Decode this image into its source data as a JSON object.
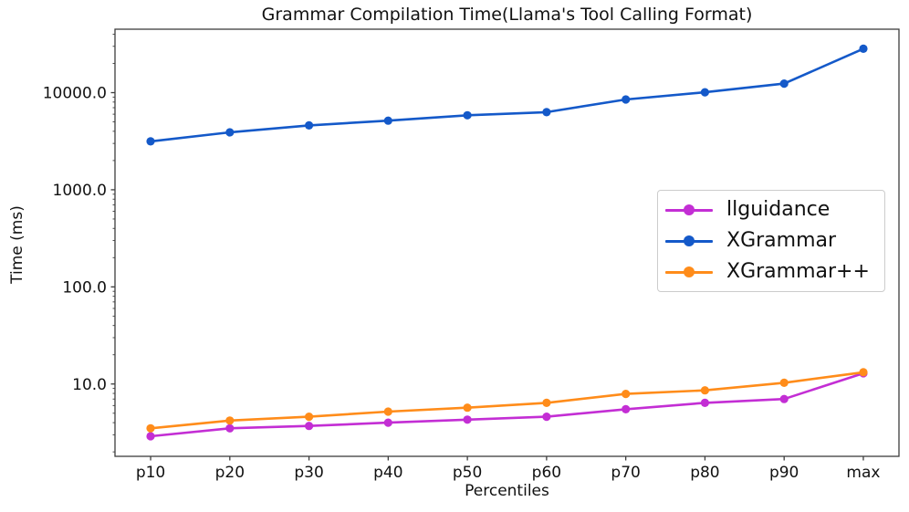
{
  "chart_data": {
    "type": "line",
    "title": "Grammar Compilation Time(Llama's Tool Calling Format)",
    "xlabel": "Percentiles",
    "ylabel": "Time (ms)",
    "yscale": "log",
    "ylim": [
      1.8,
      45000
    ],
    "grid": false,
    "legend_position": "center-right",
    "ytick_values": [
      10,
      100,
      1000,
      10000
    ],
    "ytick_labels": [
      "10.0",
      "100.0",
      "1000.0",
      "10000.0"
    ],
    "categories": [
      "p10",
      "p20",
      "p30",
      "p40",
      "p50",
      "p60",
      "p70",
      "p80",
      "p90",
      "max"
    ],
    "series": [
      {
        "name": "llguidance",
        "color": "#c32ed4",
        "values": [
          2.9,
          3.5,
          3.7,
          4.0,
          4.3,
          4.6,
          5.5,
          6.4,
          7.0,
          12.9
        ]
      },
      {
        "name": "XGrammar",
        "color": "#1459c9",
        "values": [
          3150,
          3900,
          4600,
          5150,
          5850,
          6300,
          8500,
          10100,
          12400,
          28300
        ]
      },
      {
        "name": "XGrammar++",
        "color": "#ff8c1a",
        "values": [
          3.5,
          4.2,
          4.6,
          5.2,
          5.7,
          6.4,
          7.9,
          8.6,
          10.3,
          13.2
        ]
      }
    ]
  }
}
